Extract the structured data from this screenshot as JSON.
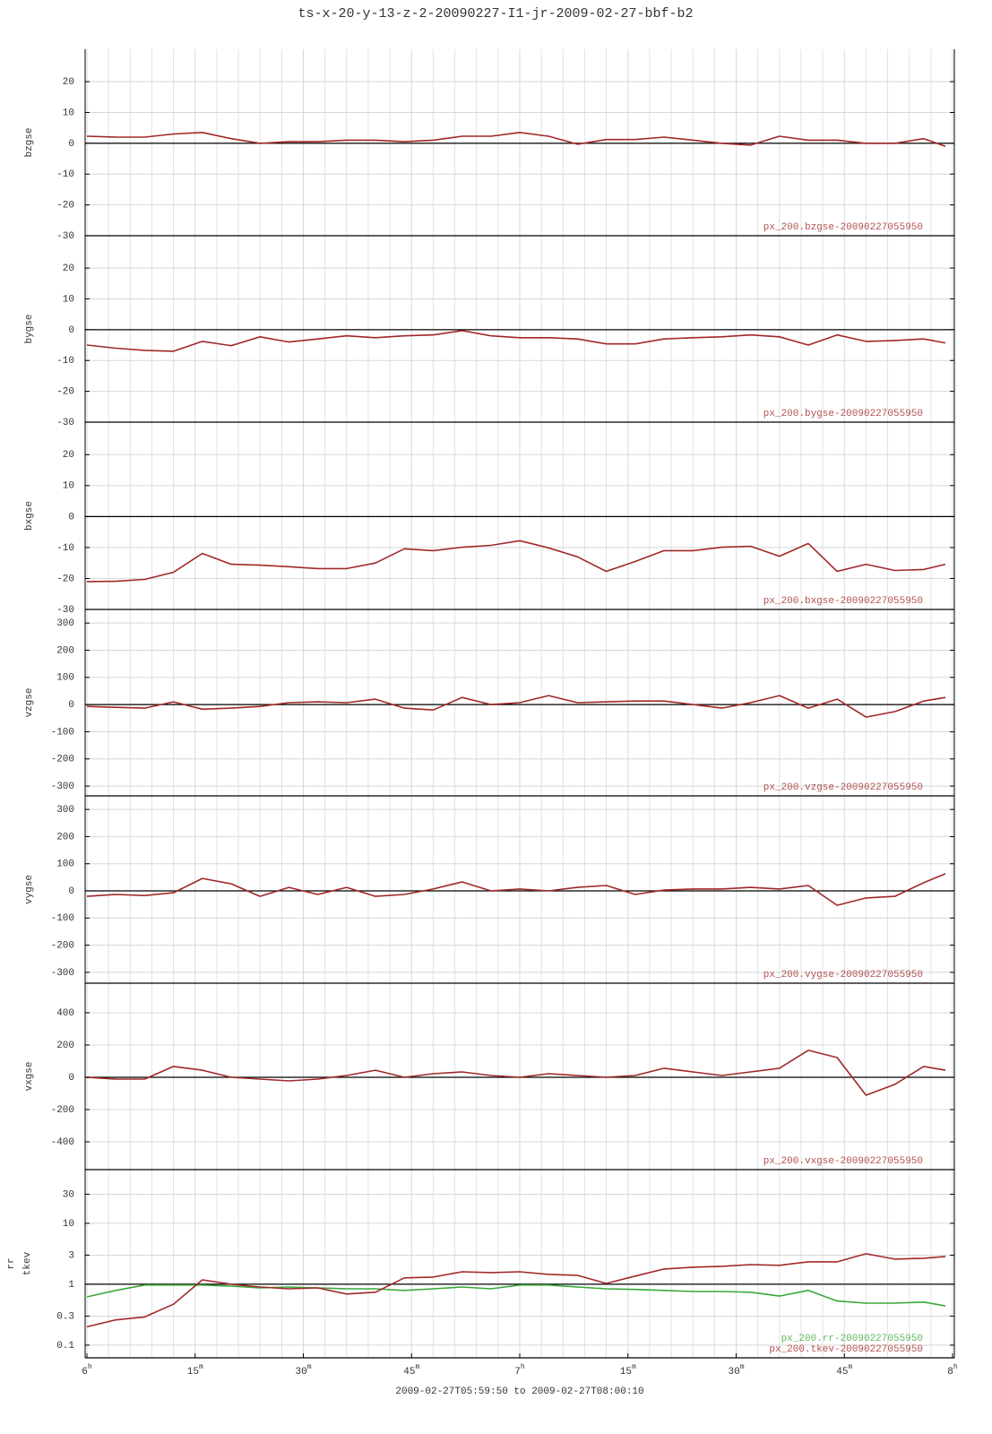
{
  "title": "ts-x-20-y-13-z-2-20090227-I1-jr-2009-02-27-bbf-b2",
  "x_axis": {
    "label": "2009-02-27T05:59:50 to 2009-02-27T08:00:10",
    "xlim": [
      0,
      120
    ],
    "xticks": [
      {
        "value": 0,
        "label": "6h"
      },
      {
        "value": 15,
        "label": "15m"
      },
      {
        "value": 30,
        "label": "30m"
      },
      {
        "value": 45,
        "label": "45m"
      },
      {
        "value": 60,
        "label": "7h"
      },
      {
        "value": 75,
        "label": "15m"
      },
      {
        "value": 90,
        "label": "30m"
      },
      {
        "value": 105,
        "label": "45m"
      },
      {
        "value": 120,
        "label": "8h"
      }
    ]
  },
  "chart_data": [
    {
      "type": "line",
      "ylabel": "bzgse",
      "ylim": [
        -30,
        30.5
      ],
      "yticks": [
        -30,
        -20,
        -10,
        0,
        10,
        20
      ],
      "hline": 0,
      "grid": true,
      "x": [
        0,
        4,
        8,
        12,
        16,
        20,
        24,
        28,
        32,
        36,
        40,
        44,
        48,
        52,
        56,
        60,
        64,
        68,
        72,
        76,
        80,
        84,
        88,
        92,
        96,
        100,
        104,
        108,
        112,
        116,
        119
      ],
      "series": [
        {
          "name": "px_200.bzgse-20090227055950",
          "color": "#a02828",
          "values": [
            2.3,
            2,
            2,
            3,
            3.5,
            1.5,
            0,
            0.5,
            0.5,
            1,
            1,
            0.5,
            1,
            2.3,
            2.3,
            3.5,
            2.3,
            -0.3,
            1.2,
            1.2,
            2,
            1,
            0,
            -0.6,
            2.3,
            1,
            1,
            0,
            0,
            1.5,
            -1
          ]
        }
      ]
    },
    {
      "type": "line",
      "ylabel": "bygse",
      "ylim": [
        -30,
        30.5
      ],
      "yticks": [
        -30,
        -20,
        -10,
        0,
        10,
        20
      ],
      "hline": 0,
      "grid": true,
      "x": [
        0,
        4,
        8,
        12,
        16,
        20,
        24,
        28,
        32,
        36,
        40,
        44,
        48,
        52,
        56,
        60,
        64,
        68,
        72,
        76,
        80,
        84,
        88,
        92,
        96,
        100,
        104,
        108,
        112,
        116,
        119
      ],
      "series": [
        {
          "name": "px_200.bygse-20090227055950",
          "color": "#a02828",
          "values": [
            -5,
            -6,
            -6.7,
            -7,
            -3.8,
            -5.2,
            -2.3,
            -4,
            -3,
            -2,
            -2.6,
            -2,
            -1.7,
            -0.3,
            -2,
            -2.6,
            -2.6,
            -3,
            -4.6,
            -4.6,
            -3,
            -2.6,
            -2.3,
            -1.7,
            -2.3,
            -5,
            -1.7,
            -3.8,
            -3.5,
            -3,
            -4.3
          ]
        }
      ]
    },
    {
      "type": "line",
      "ylabel": "bxgse",
      "ylim": [
        -30,
        30.5
      ],
      "yticks": [
        -30,
        -20,
        -10,
        0,
        10,
        20
      ],
      "hline": 0,
      "grid": true,
      "x": [
        0,
        4,
        8,
        12,
        16,
        20,
        24,
        28,
        32,
        36,
        40,
        44,
        48,
        52,
        56,
        60,
        64,
        68,
        72,
        76,
        80,
        84,
        88,
        92,
        96,
        100,
        104,
        108,
        112,
        116,
        119
      ],
      "series": [
        {
          "name": "px_200.bxgse-20090227055950",
          "color": "#a02828",
          "values": [
            -21,
            -20.9,
            -20.3,
            -18,
            -11.9,
            -15.4,
            -15.7,
            -16.2,
            -16.8,
            -16.8,
            -15,
            -10.4,
            -11,
            -9.9,
            -9.3,
            -7.8,
            -10.1,
            -13,
            -17.7,
            -14.5,
            -11,
            -11,
            -9.9,
            -9.6,
            -12.8,
            -8.7,
            -17.7,
            -15.4,
            -17.4,
            -17.1,
            -15.4
          ]
        }
      ]
    },
    {
      "type": "line",
      "ylabel": "vzgse",
      "ylim": [
        -336,
        350
      ],
      "yticks": [
        -300,
        -200,
        -100,
        0,
        100,
        200,
        300
      ],
      "hline": 0,
      "grid": true,
      "x": [
        0,
        4,
        8,
        12,
        16,
        20,
        24,
        28,
        32,
        36,
        40,
        44,
        48,
        52,
        56,
        60,
        64,
        68,
        72,
        76,
        80,
        84,
        88,
        92,
        96,
        100,
        104,
        108,
        112,
        116,
        119
      ],
      "series": [
        {
          "name": "px_200.vzgse-20090227055950",
          "color": "#a02828",
          "values": [
            -7,
            -10,
            -13,
            10,
            -17,
            -13,
            -7,
            7,
            10,
            7,
            20,
            -13,
            -20,
            26,
            0,
            7,
            33,
            7,
            10,
            13,
            13,
            0,
            -13,
            7,
            33,
            -13,
            20,
            -46,
            -26,
            13,
            26
          ]
        }
      ]
    },
    {
      "type": "line",
      "ylabel": "vygse",
      "ylim": [
        -340,
        350
      ],
      "yticks": [
        -300,
        -200,
        -100,
        0,
        100,
        200,
        300
      ],
      "hline": 0,
      "grid": true,
      "x": [
        0,
        4,
        8,
        12,
        16,
        20,
        24,
        28,
        32,
        36,
        40,
        44,
        48,
        52,
        56,
        60,
        64,
        68,
        72,
        76,
        80,
        84,
        88,
        92,
        96,
        100,
        104,
        108,
        112,
        116,
        119
      ],
      "series": [
        {
          "name": "px_200.vygse-20090227055950",
          "color": "#a02828",
          "values": [
            -20,
            -13,
            -17,
            -7,
            46,
            26,
            -20,
            13,
            -13,
            13,
            -20,
            -13,
            7,
            33,
            0,
            7,
            0,
            13,
            20,
            -13,
            3,
            7,
            7,
            13,
            7,
            20,
            -53,
            -26,
            -20,
            30,
            63
          ]
        }
      ]
    },
    {
      "type": "line",
      "ylabel": "vxgse",
      "ylim": [
        -572,
        583
      ],
      "yticks": [
        -400,
        -200,
        0,
        200,
        400
      ],
      "hline": 0,
      "grid": true,
      "x": [
        0,
        4,
        8,
        12,
        16,
        20,
        24,
        28,
        32,
        36,
        40,
        44,
        48,
        52,
        56,
        60,
        64,
        68,
        72,
        76,
        80,
        84,
        88,
        92,
        96,
        100,
        104,
        108,
        112,
        116,
        119
      ],
      "series": [
        {
          "name": "px_200.vxgse-20090227055950",
          "color": "#a02828",
          "values": [
            0,
            -11,
            -11,
            67,
            44,
            0,
            -11,
            -22,
            -11,
            11,
            44,
            0,
            22,
            33,
            11,
            0,
            22,
            11,
            0,
            11,
            56,
            33,
            11,
            33,
            56,
            167,
            122,
            -111,
            -44,
            67,
            44
          ]
        }
      ]
    },
    {
      "type": "line",
      "ylabel": [
        "rr",
        "tkev"
      ],
      "log": true,
      "ylim": [
        0.062,
        76
      ],
      "yticks": [
        0.1,
        0.3,
        1,
        3,
        10,
        30
      ],
      "hline": 1,
      "grid": true,
      "x": [
        0,
        4,
        8,
        12,
        16,
        20,
        24,
        28,
        32,
        36,
        40,
        44,
        48,
        52,
        56,
        60,
        64,
        68,
        72,
        76,
        80,
        84,
        88,
        92,
        96,
        100,
        104,
        108,
        112,
        116,
        119
      ],
      "series": [
        {
          "name": "px_200.rr-20090227055950",
          "color": "#3aa83a",
          "values": [
            0.62,
            0.79,
            0.97,
            0.97,
            0.97,
            0.93,
            0.87,
            0.9,
            0.87,
            0.84,
            0.84,
            0.79,
            0.84,
            0.9,
            0.84,
            0.97,
            0.97,
            0.9,
            0.84,
            0.82,
            0.79,
            0.76,
            0.76,
            0.74,
            0.64,
            0.79,
            0.53,
            0.49,
            0.49,
            0.51,
            0.44
          ]
        },
        {
          "name": "px_200.tkev-20090227055950",
          "color": "#a02828",
          "values": [
            0.2,
            0.26,
            0.29,
            0.47,
            1.18,
            1,
            0.9,
            0.84,
            0.87,
            0.69,
            0.74,
            1.27,
            1.31,
            1.6,
            1.55,
            1.6,
            1.45,
            1.4,
            1.03,
            1.36,
            1.78,
            1.9,
            1.97,
            2.1,
            2.04,
            2.33,
            2.33,
            3.16,
            2.58,
            2.67,
            2.86
          ]
        }
      ]
    }
  ]
}
